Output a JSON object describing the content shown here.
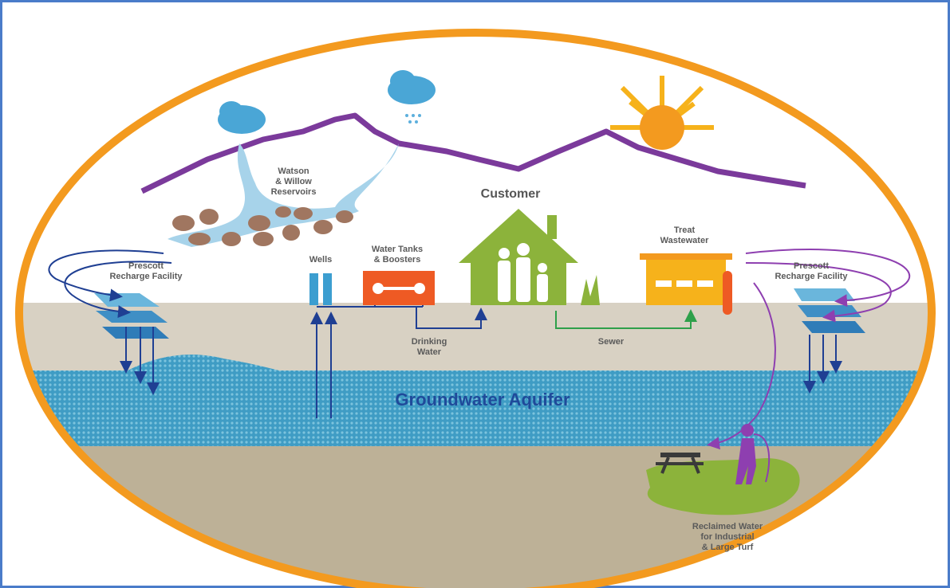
{
  "labels": {
    "reservoirs": [
      "Watson",
      "& Willow",
      "Reservoirs"
    ],
    "customer": "Customer",
    "tanks": [
      "Water Tanks",
      "& Boosters"
    ],
    "wells": "Wells",
    "treat": [
      "Treat",
      "Wastewater"
    ],
    "recharge_left": [
      "Prescott",
      "Recharge Facility"
    ],
    "recharge_right": [
      "Prescott",
      "Recharge Facility"
    ],
    "drinking": [
      "Drinking",
      "Water"
    ],
    "sewer": "Sewer",
    "aquifer": "Groundwater Aquifer",
    "reclaimed": [
      "Reclaimed Water",
      "for Industrial",
      "& Large Turf"
    ]
  }
}
